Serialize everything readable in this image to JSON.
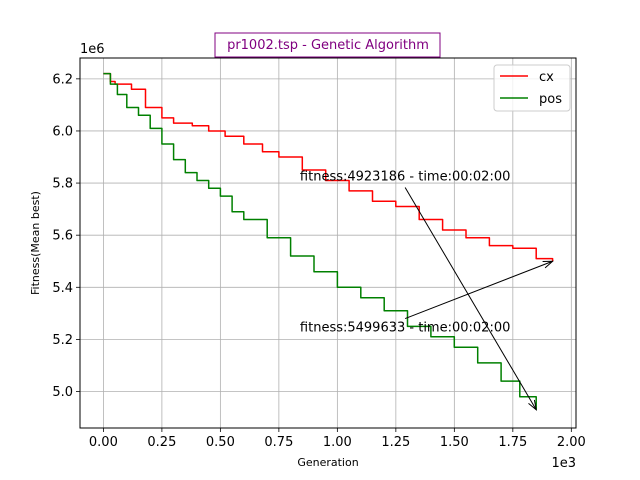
{
  "chart_data": {
    "type": "line",
    "title": "pr1002.tsp - Genetic Algorithm",
    "title_color": "#800080",
    "xlabel": "Generation",
    "ylabel": "Fitness(Mean best)",
    "x_offset_label": "1e3",
    "y_offset_label": "1e6",
    "xlim": [
      -0.1,
      2.02
    ],
    "ylim": [
      4.86,
      6.28
    ],
    "x_ticks": [
      0.0,
      0.25,
      0.5,
      0.75,
      1.0,
      1.25,
      1.5,
      1.75,
      2.0
    ],
    "x_tick_labels": [
      "0.00",
      "0.25",
      "0.50",
      "0.75",
      "1.00",
      "1.25",
      "1.50",
      "1.75",
      "2.00"
    ],
    "y_ticks": [
      5.0,
      5.2,
      5.4,
      5.6,
      5.8,
      6.0,
      6.2
    ],
    "y_tick_labels": [
      "5.0",
      "5.2",
      "5.4",
      "5.6",
      "5.8",
      "6.0",
      "6.2"
    ],
    "grid": true,
    "legend_position": "top-right",
    "series": [
      {
        "name": "cx",
        "color": "#ff0000",
        "x": [
          0.0,
          0.02,
          0.03,
          0.05,
          0.12,
          0.18,
          0.25,
          0.3,
          0.38,
          0.45,
          0.52,
          0.6,
          0.68,
          0.75,
          0.85,
          0.95,
          1.05,
          1.15,
          1.25,
          1.35,
          1.45,
          1.55,
          1.65,
          1.75,
          1.85,
          1.92
        ],
        "values": [
          6.22,
          6.22,
          6.19,
          6.18,
          6.16,
          6.09,
          6.05,
          6.03,
          6.02,
          6.0,
          5.98,
          5.95,
          5.92,
          5.9,
          5.85,
          5.81,
          5.77,
          5.73,
          5.71,
          5.66,
          5.62,
          5.59,
          5.56,
          5.55,
          5.51,
          5.5
        ]
      },
      {
        "name": "pos",
        "color": "#008000",
        "x": [
          0.0,
          0.03,
          0.06,
          0.1,
          0.15,
          0.2,
          0.25,
          0.3,
          0.35,
          0.4,
          0.45,
          0.5,
          0.55,
          0.6,
          0.7,
          0.8,
          0.9,
          1.0,
          1.1,
          1.2,
          1.3,
          1.4,
          1.5,
          1.6,
          1.7,
          1.78,
          1.85
        ],
        "values": [
          6.22,
          6.18,
          6.14,
          6.09,
          6.06,
          6.01,
          5.95,
          5.89,
          5.84,
          5.81,
          5.78,
          5.75,
          5.69,
          5.66,
          5.59,
          5.52,
          5.46,
          5.4,
          5.36,
          5.31,
          5.25,
          5.21,
          5.17,
          5.11,
          5.04,
          4.98,
          4.93
        ]
      }
    ],
    "annotations": [
      {
        "text": "fitness:4923186 - time:00:02:00",
        "text_x": 0.84,
        "text_y": 5.81,
        "target_x": 1.85,
        "target_y": 4.93
      },
      {
        "text": "fitness:5499633 - time:00:02:00",
        "text_x": 0.84,
        "text_y": 5.23,
        "target_x": 1.92,
        "target_y": 5.5
      }
    ]
  }
}
